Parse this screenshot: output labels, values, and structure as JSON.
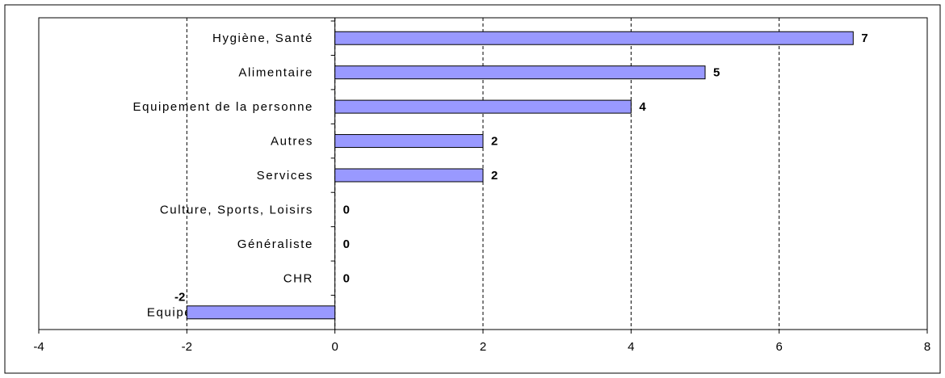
{
  "chart_data": {
    "type": "bar",
    "orientation": "horizontal",
    "categories": [
      "Hygiène, Santé",
      "Alimentaire",
      "Equipement de la personne",
      "Autres",
      "Services",
      "Culture, Sports, Loisirs",
      "Généraliste",
      "CHR",
      "Equipement de la maison"
    ],
    "values": [
      7,
      5,
      4,
      2,
      2,
      0,
      0,
      0,
      -2
    ],
    "color": "#9999ff",
    "xlim": [
      -4,
      8
    ],
    "xticks": [
      -4,
      -2,
      0,
      2,
      4,
      6,
      8
    ],
    "grid": true
  }
}
